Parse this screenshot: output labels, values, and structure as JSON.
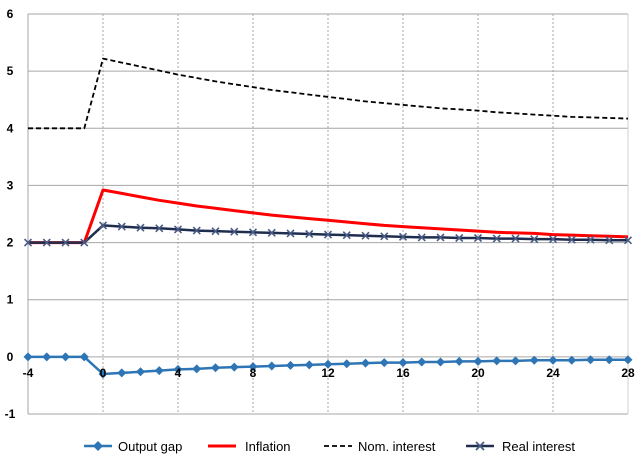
{
  "chart_data": {
    "type": "line",
    "title": "",
    "xlabel": "",
    "ylabel": "",
    "x": [
      -4,
      -3,
      -2,
      -1,
      0,
      1,
      2,
      3,
      4,
      5,
      6,
      7,
      8,
      9,
      10,
      11,
      12,
      13,
      14,
      15,
      16,
      17,
      18,
      19,
      20,
      21,
      22,
      23,
      24,
      25,
      26,
      27,
      28
    ],
    "xlim": [
      -4,
      28
    ],
    "ylim": [
      -1,
      6
    ],
    "x_ticks": [
      "-4",
      "0",
      "4",
      "8",
      "12",
      "16",
      "20",
      "24",
      "28"
    ],
    "y_ticks": [
      "-1",
      "0",
      "1",
      "2",
      "3",
      "4",
      "5",
      "6"
    ],
    "grid": true,
    "legend_position": "bottom",
    "series": [
      {
        "name": "Output gap",
        "color": "#2e75b6",
        "style": "solid",
        "marker": "diamond",
        "values": [
          0,
          0,
          0,
          0,
          -0.3,
          -0.28,
          -0.26,
          -0.24,
          -0.22,
          -0.21,
          -0.19,
          -0.18,
          -0.17,
          -0.16,
          -0.15,
          -0.14,
          -0.13,
          -0.12,
          -0.11,
          -0.1,
          -0.1,
          -0.09,
          -0.09,
          -0.08,
          -0.08,
          -0.07,
          -0.07,
          -0.06,
          -0.06,
          -0.06,
          -0.05,
          -0.05,
          -0.05
        ]
      },
      {
        "name": "Inflation",
        "color": "#ff0000",
        "style": "solid",
        "marker": "none",
        "values": [
          2,
          2,
          2,
          2,
          2.92,
          2.86,
          2.8,
          2.74,
          2.69,
          2.64,
          2.6,
          2.56,
          2.52,
          2.48,
          2.45,
          2.42,
          2.39,
          2.36,
          2.33,
          2.3,
          2.28,
          2.26,
          2.24,
          2.22,
          2.2,
          2.18,
          2.17,
          2.16,
          2.14,
          2.13,
          2.12,
          2.11,
          2.1
        ]
      },
      {
        "name": "Nom. interest",
        "color": "#000000",
        "style": "dashed",
        "marker": "none",
        "values": [
          4,
          4,
          4,
          4,
          5.22,
          5.15,
          5.08,
          5.01,
          4.94,
          4.88,
          4.82,
          4.77,
          4.72,
          4.67,
          4.63,
          4.59,
          4.55,
          4.51,
          4.47,
          4.44,
          4.41,
          4.38,
          4.35,
          4.33,
          4.31,
          4.28,
          4.26,
          4.24,
          4.22,
          4.2,
          4.19,
          4.18,
          4.17
        ]
      },
      {
        "name": "Real interest",
        "color": "#1f2d4f",
        "style": "solid",
        "marker": "x",
        "values": [
          2,
          2,
          2,
          2,
          2.3,
          2.28,
          2.26,
          2.25,
          2.23,
          2.21,
          2.2,
          2.19,
          2.18,
          2.17,
          2.16,
          2.15,
          2.14,
          2.13,
          2.12,
          2.11,
          2.1,
          2.09,
          2.09,
          2.08,
          2.08,
          2.07,
          2.07,
          2.06,
          2.06,
          2.05,
          2.05,
          2.04,
          2.04
        ]
      }
    ]
  }
}
